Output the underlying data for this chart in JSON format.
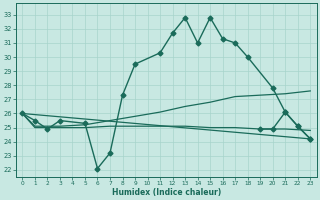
{
  "xlabel": "Humidex (Indice chaleur)",
  "bg_color": "#c8e8e2",
  "grid_color": "#a8d4cc",
  "line_color": "#1a6b5a",
  "xlim": [
    -0.5,
    23.5
  ],
  "ylim": [
    21.5,
    33.8
  ],
  "yticks": [
    22,
    23,
    24,
    25,
    26,
    27,
    28,
    29,
    30,
    31,
    32,
    33
  ],
  "xticks": [
    0,
    1,
    2,
    3,
    4,
    5,
    6,
    7,
    8,
    9,
    10,
    11,
    12,
    13,
    14,
    15,
    16,
    17,
    18,
    19,
    20,
    21,
    22,
    23
  ],
  "series": [
    {
      "x": [
        0,
        1,
        2,
        3,
        5,
        6,
        7,
        8,
        9,
        11,
        12,
        13,
        14,
        15,
        16,
        17,
        18,
        20,
        21,
        22,
        23
      ],
      "y": [
        26.0,
        25.5,
        24.9,
        25.5,
        25.3,
        22.1,
        23.2,
        27.3,
        29.5,
        30.3,
        31.7,
        32.8,
        31.0,
        32.8,
        31.3,
        31.0,
        30.0,
        27.8,
        26.1,
        25.1,
        24.2
      ],
      "marker": "D",
      "markersize": 2.5,
      "linewidth": 1.0
    },
    {
      "x": [
        0,
        1,
        3,
        5,
        7,
        9,
        11,
        13,
        15,
        17,
        19,
        21,
        23
      ],
      "y": [
        26.0,
        25.1,
        25.1,
        25.2,
        25.5,
        25.8,
        26.1,
        26.5,
        26.8,
        27.2,
        27.3,
        27.4,
        27.6
      ],
      "marker": null,
      "markersize": 0,
      "linewidth": 0.9
    },
    {
      "x": [
        0,
        1,
        3,
        5,
        7,
        9,
        11,
        13,
        15,
        17,
        19,
        21,
        23
      ],
      "y": [
        26.0,
        25.0,
        25.0,
        25.0,
        25.1,
        25.1,
        25.1,
        25.1,
        25.0,
        25.0,
        24.9,
        24.9,
        24.8
      ],
      "marker": null,
      "markersize": 0,
      "linewidth": 0.9
    },
    {
      "x": [
        0,
        23
      ],
      "y": [
        26.0,
        24.2
      ],
      "marker": null,
      "markersize": 0,
      "linewidth": 0.9
    },
    {
      "x": [
        19,
        20,
        21,
        22,
        23
      ],
      "y": [
        24.9,
        24.9,
        26.1,
        25.1,
        24.2
      ],
      "marker": "D",
      "markersize": 2.5,
      "linewidth": 1.0
    }
  ]
}
